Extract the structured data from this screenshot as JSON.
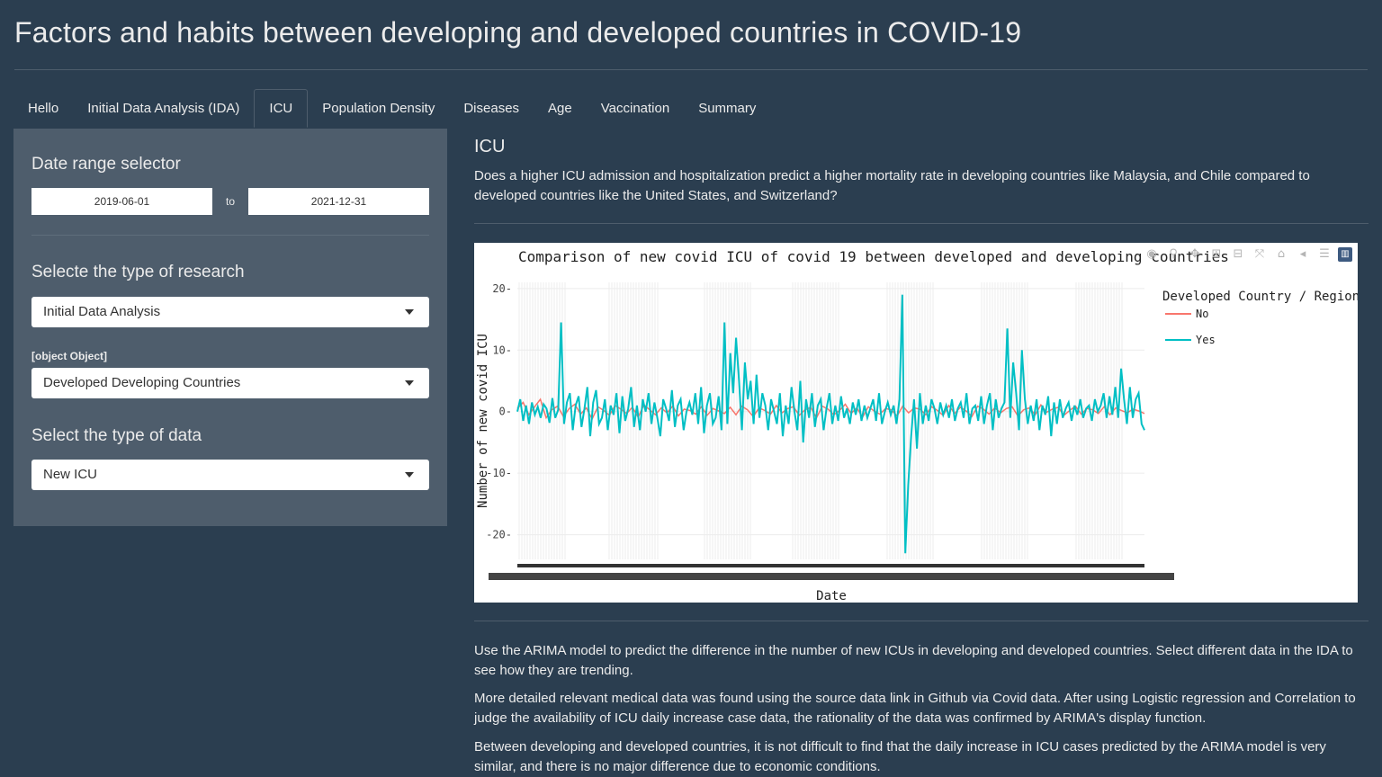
{
  "app": {
    "title": "Factors and habits between developing and developed countries in COVID-19"
  },
  "tabs": [
    {
      "label": "Hello",
      "active": false
    },
    {
      "label": "Initial Data Analysis (IDA)",
      "active": false
    },
    {
      "label": "ICU",
      "active": true
    },
    {
      "label": "Population Density",
      "active": false
    },
    {
      "label": "Diseases",
      "active": false
    },
    {
      "label": "Age",
      "active": false
    },
    {
      "label": "Vaccination",
      "active": false
    },
    {
      "label": "Summary",
      "active": false
    }
  ],
  "sidebar": {
    "date_range_label": "Date range selector",
    "date_start": "2019-06-01",
    "date_to": "to",
    "date_end": "2021-12-31",
    "research_label": "Selecte the type of research",
    "research_value": "Initial Data Analysis",
    "object_label": "[object Object]",
    "country_value": "Developed Developing Countries",
    "data_label": "Select the type of data",
    "data_value": "New ICU"
  },
  "main": {
    "heading": "ICU",
    "question": "Does a higher ICU admission and hospitalization predict a higher mortality rate in developing countries like Malaysia, and Chile compared to developed countries like the United States, and Switzerland?",
    "para1": "Use the ARIMA model to predict the difference in the number of new ICUs in developing and developed countries. Select different data in the IDA to see how they are trending.",
    "para2": "More detailed relevant medical data was found using the source data link in Github via Covid data. After using Logistic regression and Correlation to judge the availability of ICU daily increase case data, the rationality of the data was confirmed by ARIMA's display function.",
    "para3": "Between developing and developed countries, it is not difficult to find that the daily increase in ICU cases predicted by the ARIMA model is very similar, and there is no major difference due to economic conditions."
  },
  "modebar": {
    "icons": [
      "camera-icon",
      "zoom-icon",
      "pan-icon",
      "zoom-in-icon",
      "zoom-out-icon",
      "autoscale-icon",
      "reset-axes-icon",
      "spike-lines-icon",
      "compare-hover-icon",
      "plotly-logo-icon"
    ]
  },
  "colors": {
    "background": "#2b3e50",
    "panel": "#4e5d6c",
    "series_no": "#f8766d",
    "series_yes": "#00bfc4"
  },
  "chart_data": {
    "type": "line",
    "title": "Comparison of new covid ICU of covid 19 between developed and developing countries",
    "xlabel": "Date",
    "ylabel": "Number of new covid ICU",
    "ylim": [
      -24,
      21
    ],
    "yticks": [
      -20,
      -10,
      0,
      10,
      20
    ],
    "grid": true,
    "legend": {
      "title": "Developed Country / Region",
      "placement": "right"
    },
    "series": [
      {
        "name": "No",
        "color": "#f8766d",
        "values": [
          0.5,
          1.5,
          -0.5,
          0.8,
          2,
          -1,
          0.3,
          0.9,
          -0.8,
          0.5,
          1.2,
          -0.4,
          0.6,
          -1.2,
          0.8,
          0.2,
          -0.6,
          1,
          0.4,
          -0.3,
          0.7,
          -0.9,
          1.1,
          0.3,
          -0.5,
          0.6,
          -0.2,
          0.9,
          -0.7,
          0.4,
          0.2,
          -0.4,
          0.8,
          -0.6,
          0.5,
          0.1,
          -0.3,
          0.7,
          -0.5,
          0.9,
          0.3,
          -0.8,
          0.6,
          0.2,
          -0.4,
          1,
          -0.2,
          0.5,
          0.8,
          -0.6,
          0.3,
          0.7,
          -1,
          0.9,
          0.4,
          -0.5,
          0.2,
          1.2,
          -0.3,
          0.6,
          -0.9,
          0.8,
          0.1,
          -0.4,
          0.5,
          0.3,
          -0.7,
          0.9,
          -0.2,
          0.6,
          0.4,
          -0.5,
          0.8,
          0.2,
          -0.6,
          1,
          -0.3,
          0.7,
          0.1,
          -0.8,
          0.9,
          0.4,
          -0.4,
          0.6,
          -0.2,
          0.5,
          0.8,
          -0.7,
          0.3,
          0.6,
          -0.5,
          1.1,
          -0.1,
          0.4,
          0.7,
          -0.6,
          0.2,
          0.9,
          -0.4,
          0.5,
          0.3,
          -0.3,
          0.8,
          -0.5,
          0.6,
          0.2,
          -0.2,
          0.4,
          0.1,
          -0.3
        ]
      },
      {
        "name": "Yes",
        "color": "#00bfc4",
        "values": [
          0,
          2,
          -1.5,
          1,
          -2,
          1.5,
          -0.5,
          0.8,
          -1,
          1.2,
          0.5,
          -1.8,
          2.2,
          -1,
          0.3,
          14.5,
          -2,
          1.5,
          3,
          -3,
          1,
          2.5,
          -2.5,
          0.5,
          4,
          -4,
          1.5,
          3.5,
          -2,
          -1,
          2,
          -3,
          1,
          -0.5,
          3,
          -3.5,
          2.5,
          -1.5,
          0.5,
          4,
          -2.5,
          1,
          -3,
          2,
          0,
          3,
          -2,
          1.5,
          -1,
          -4,
          2,
          0.5,
          -1.5,
          3.5,
          -2.5,
          1,
          2,
          -3,
          0,
          1.5,
          -0.5,
          3,
          -2,
          4,
          -3.5,
          1,
          3,
          -2,
          -1,
          2.5,
          -3,
          14.5,
          -2,
          9.5,
          3,
          12,
          5,
          -3,
          8,
          2,
          5,
          -2,
          6,
          -1,
          3,
          1,
          -3,
          2,
          0,
          -2,
          3,
          -4,
          1,
          -2,
          4,
          0,
          -3,
          5,
          -5,
          2,
          -1,
          3,
          -2.5,
          1,
          2,
          -3,
          0.5,
          3,
          -2,
          1,
          -1.5,
          2.5,
          -1,
          0.5,
          -2,
          1.5,
          -0.5,
          2,
          -1.5,
          1,
          -1,
          0.5,
          2,
          -1.5,
          3,
          -2,
          0,
          1.5,
          -0.5,
          1,
          -2,
          2,
          19,
          -23,
          -12,
          -4,
          2,
          -6,
          3,
          -2,
          1,
          -1.5,
          2,
          0.5,
          -2,
          1.5,
          -0.5,
          1,
          -1,
          2,
          -1.5,
          0.5,
          1.5,
          -1,
          3,
          -2,
          0.5,
          1,
          -1.5,
          2.5,
          -2,
          1,
          3,
          -3,
          2,
          -1,
          0.5,
          1.5,
          13.5,
          -1,
          8,
          3,
          -3,
          10,
          2,
          -2,
          1,
          -1.5,
          2,
          -3,
          1,
          -0.5,
          2.5,
          -4,
          1.5,
          -2,
          2,
          -1,
          0.5,
          1.5,
          -1.5,
          1,
          -0.5,
          2,
          -1,
          0.5,
          1,
          -1.5,
          2,
          0,
          1,
          3,
          -1,
          2.5,
          -0.5,
          4,
          -1,
          7,
          2,
          -2,
          4,
          -1,
          2,
          3,
          -2,
          -3
        ]
      }
    ],
    "x_range_note": ""
  }
}
